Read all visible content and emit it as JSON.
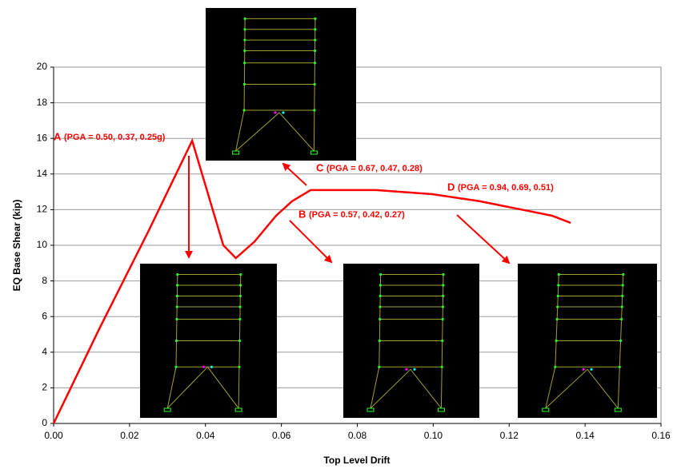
{
  "chart_data": {
    "type": "line",
    "x_label": "Top Level Drift",
    "y_label": "EQ Base Shear (kip)",
    "x": [
      0,
      0.012,
      0.025,
      0.0365,
      0.0447,
      0.048,
      0.0529,
      0.0586,
      0.0628,
      0.0677,
      0.085,
      0.0997,
      0.1123,
      0.125,
      0.1313,
      0.1362
    ],
    "values": [
      0,
      5.3,
      10.8,
      15.87,
      10.0,
      9.28,
      10.2,
      11.66,
      12.47,
      13.1,
      13.1,
      12.87,
      12.47,
      11.93,
      11.66,
      11.26
    ],
    "color": "#ff0000",
    "xlim": [
      0,
      0.16
    ],
    "xticks": [
      {
        "value": 0,
        "label": "0.00"
      },
      {
        "value": 0.02,
        "label": "0.02"
      },
      {
        "value": 0.04,
        "label": "0.04"
      },
      {
        "value": 0.06,
        "label": "0.06"
      },
      {
        "value": 0.08,
        "label": "0.08"
      },
      {
        "value": 0.1,
        "label": "0.10"
      },
      {
        "value": 0.12,
        "label": "0.12"
      },
      {
        "value": 0.14,
        "label": "0.14"
      },
      {
        "value": 0.16,
        "label": "0.16"
      }
    ],
    "ylim": [
      0,
      20
    ],
    "yticks": [
      0,
      2,
      4,
      6,
      8,
      10,
      12,
      14,
      16,
      18,
      20
    ],
    "grid": true,
    "annotations": [
      {
        "letter": "A",
        "text": "(PGA = 0.50, 0.37, 0.25g)"
      },
      {
        "letter": "C",
        "text": "(PGA = 0.67, 0.47, 0.28)"
      },
      {
        "letter": "B",
        "text": "(PGA = 0.57, 0.42, 0.27)"
      },
      {
        "letter": "D",
        "text": "(PGA = 0.94, 0.69, 0.51)"
      }
    ]
  }
}
